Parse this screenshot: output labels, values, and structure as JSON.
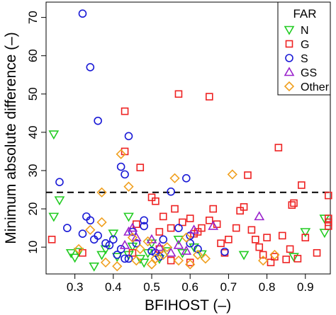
{
  "chart_data": {
    "type": "scatter",
    "title": "",
    "xlabel": "BFIHOST (–)",
    "ylabel": "Minimum absolute difference (–)",
    "xlim": [
      0.225,
      0.965
    ],
    "ylim": [
      3.0,
      74.0
    ],
    "xticks": [
      0.3,
      0.4,
      0.5,
      0.6,
      0.7,
      0.8,
      0.9
    ],
    "yticks": [
      10,
      20,
      30,
      40,
      50,
      60,
      70
    ],
    "grid": false,
    "legend": {
      "title": "FAR",
      "position": "top-right"
    },
    "reference_line": {
      "y": 24.3,
      "style": "dashed",
      "color": "#000000"
    },
    "series": [
      {
        "name": "N",
        "marker": "triangle-down",
        "color": "#22cc22",
        "points": [
          [
            0.245,
            39.5
          ],
          [
            0.245,
            18.0
          ],
          [
            0.26,
            22.3
          ],
          [
            0.29,
            8.5
          ],
          [
            0.3,
            7.3
          ],
          [
            0.31,
            8.8
          ],
          [
            0.37,
            8.0
          ],
          [
            0.38,
            9.5
          ],
          [
            0.4,
            13.6
          ],
          [
            0.41,
            7.5
          ],
          [
            0.44,
            18.0
          ],
          [
            0.45,
            10.2
          ],
          [
            0.47,
            7.0
          ],
          [
            0.48,
            6.0
          ],
          [
            0.49,
            8.5
          ],
          [
            0.5,
            11.0
          ],
          [
            0.52,
            7.0
          ],
          [
            0.54,
            9.0
          ],
          [
            0.57,
            12.0
          ],
          [
            0.58,
            8.5
          ],
          [
            0.61,
            10.0
          ],
          [
            0.63,
            8.2
          ],
          [
            0.74,
            8.0
          ],
          [
            0.87,
            7.5
          ],
          [
            0.9,
            14.0
          ],
          [
            0.95,
            17.5
          ],
          [
            0.95,
            13.8
          ],
          [
            0.35,
            5.0
          ],
          [
            0.44,
            8.0
          ]
        ]
      },
      {
        "name": "G",
        "marker": "square",
        "color": "#ee2222",
        "points": [
          [
            0.24,
            12.0
          ],
          [
            0.32,
            8.5
          ],
          [
            0.43,
            45.5
          ],
          [
            0.43,
            35.0
          ],
          [
            0.47,
            30.8
          ],
          [
            0.5,
            23.0
          ],
          [
            0.51,
            22.0
          ],
          [
            0.46,
            16.0
          ],
          [
            0.52,
            14.0
          ],
          [
            0.53,
            18.0
          ],
          [
            0.55,
            15.0
          ],
          [
            0.56,
            20.0
          ],
          [
            0.57,
            50.0
          ],
          [
            0.58,
            16.5
          ],
          [
            0.6,
            17.5
          ],
          [
            0.61,
            13.5
          ],
          [
            0.62,
            14.0
          ],
          [
            0.63,
            15.0
          ],
          [
            0.65,
            49.3
          ],
          [
            0.65,
            17.0
          ],
          [
            0.66,
            20.0
          ],
          [
            0.67,
            16.0
          ],
          [
            0.68,
            11.0
          ],
          [
            0.69,
            8.5
          ],
          [
            0.7,
            12.0
          ],
          [
            0.72,
            15.0
          ],
          [
            0.73,
            19.5
          ],
          [
            0.74,
            20.5
          ],
          [
            0.75,
            28.8
          ],
          [
            0.76,
            14.5
          ],
          [
            0.77,
            12.0
          ],
          [
            0.78,
            10.0
          ],
          [
            0.79,
            8.0
          ],
          [
            0.8,
            12.5
          ],
          [
            0.81,
            6.0
          ],
          [
            0.82,
            7.5
          ],
          [
            0.83,
            36.0
          ],
          [
            0.84,
            13.0
          ],
          [
            0.85,
            6.8
          ],
          [
            0.86,
            9.5
          ],
          [
            0.865,
            21.0
          ],
          [
            0.87,
            21.5
          ],
          [
            0.88,
            7.0
          ],
          [
            0.89,
            26.2
          ],
          [
            0.9,
            12.5
          ],
          [
            0.93,
            8.5
          ],
          [
            0.96,
            23.5
          ],
          [
            0.96,
            17.5
          ],
          [
            0.96,
            16.5
          ],
          [
            0.96,
            15.5
          ],
          [
            0.52,
            9.5
          ],
          [
            0.55,
            6.5
          ],
          [
            0.6,
            6.0
          ],
          [
            0.45,
            8.5
          ]
        ]
      },
      {
        "name": "S",
        "marker": "circle",
        "color": "#1a1ad6",
        "points": [
          [
            0.32,
            71.0
          ],
          [
            0.34,
            57.0
          ],
          [
            0.36,
            43.0
          ],
          [
            0.44,
            39.0
          ],
          [
            0.42,
            31.0
          ],
          [
            0.43,
            29.0
          ],
          [
            0.26,
            27.0
          ],
          [
            0.28,
            15.0
          ],
          [
            0.32,
            13.5
          ],
          [
            0.33,
            18.0
          ],
          [
            0.34,
            17.0
          ],
          [
            0.35,
            12.0
          ],
          [
            0.36,
            13.0
          ],
          [
            0.38,
            11.0
          ],
          [
            0.39,
            10.5
          ],
          [
            0.4,
            12.0
          ],
          [
            0.41,
            8.0
          ],
          [
            0.42,
            9.5
          ],
          [
            0.43,
            7.0
          ],
          [
            0.44,
            7.0
          ],
          [
            0.45,
            14.0
          ],
          [
            0.46,
            11.0
          ],
          [
            0.48,
            15.5
          ],
          [
            0.5,
            9.0
          ],
          [
            0.51,
            8.5
          ],
          [
            0.53,
            12.0
          ],
          [
            0.55,
            24.5
          ],
          [
            0.57,
            15.0
          ],
          [
            0.59,
            28.0
          ],
          [
            0.6,
            13.0
          ],
          [
            0.6,
            11.0
          ],
          [
            0.62,
            9.5
          ],
          [
            0.69,
            8.8
          ],
          [
            0.48,
            17.0
          ],
          [
            0.52,
            7.5
          ]
        ]
      },
      {
        "name": "GS",
        "marker": "triangle-up",
        "color": "#9a22cc",
        "points": [
          [
            0.43,
            10.5
          ],
          [
            0.44,
            14.0
          ],
          [
            0.45,
            15.0
          ],
          [
            0.46,
            12.5
          ],
          [
            0.5,
            12.0
          ],
          [
            0.52,
            10.0
          ],
          [
            0.55,
            8.5
          ],
          [
            0.57,
            10.5
          ],
          [
            0.59,
            9.0
          ],
          [
            0.61,
            14.5
          ],
          [
            0.66,
            15.5
          ],
          [
            0.78,
            18.0
          ]
        ]
      },
      {
        "name": "Other",
        "marker": "diamond",
        "color": "#f0a020",
        "points": [
          [
            0.31,
            9.5
          ],
          [
            0.34,
            14.5
          ],
          [
            0.37,
            16.5
          ],
          [
            0.37,
            24.3
          ],
          [
            0.41,
            5.0
          ],
          [
            0.42,
            34.3
          ],
          [
            0.44,
            25.8
          ],
          [
            0.45,
            12.5
          ],
          [
            0.46,
            6.5
          ],
          [
            0.47,
            9.5
          ],
          [
            0.49,
            11.5
          ],
          [
            0.5,
            5.5
          ],
          [
            0.51,
            7.0
          ],
          [
            0.53,
            8.0
          ],
          [
            0.54,
            10.0
          ],
          [
            0.56,
            28.0
          ],
          [
            0.57,
            6.5
          ],
          [
            0.59,
            12.5
          ],
          [
            0.6,
            5.5
          ],
          [
            0.62,
            8.0
          ],
          [
            0.64,
            7.0
          ],
          [
            0.71,
            29.0
          ],
          [
            0.79,
            6.5
          ],
          [
            0.82,
            8.0
          ],
          [
            0.38,
            6.0
          ]
        ]
      }
    ]
  }
}
